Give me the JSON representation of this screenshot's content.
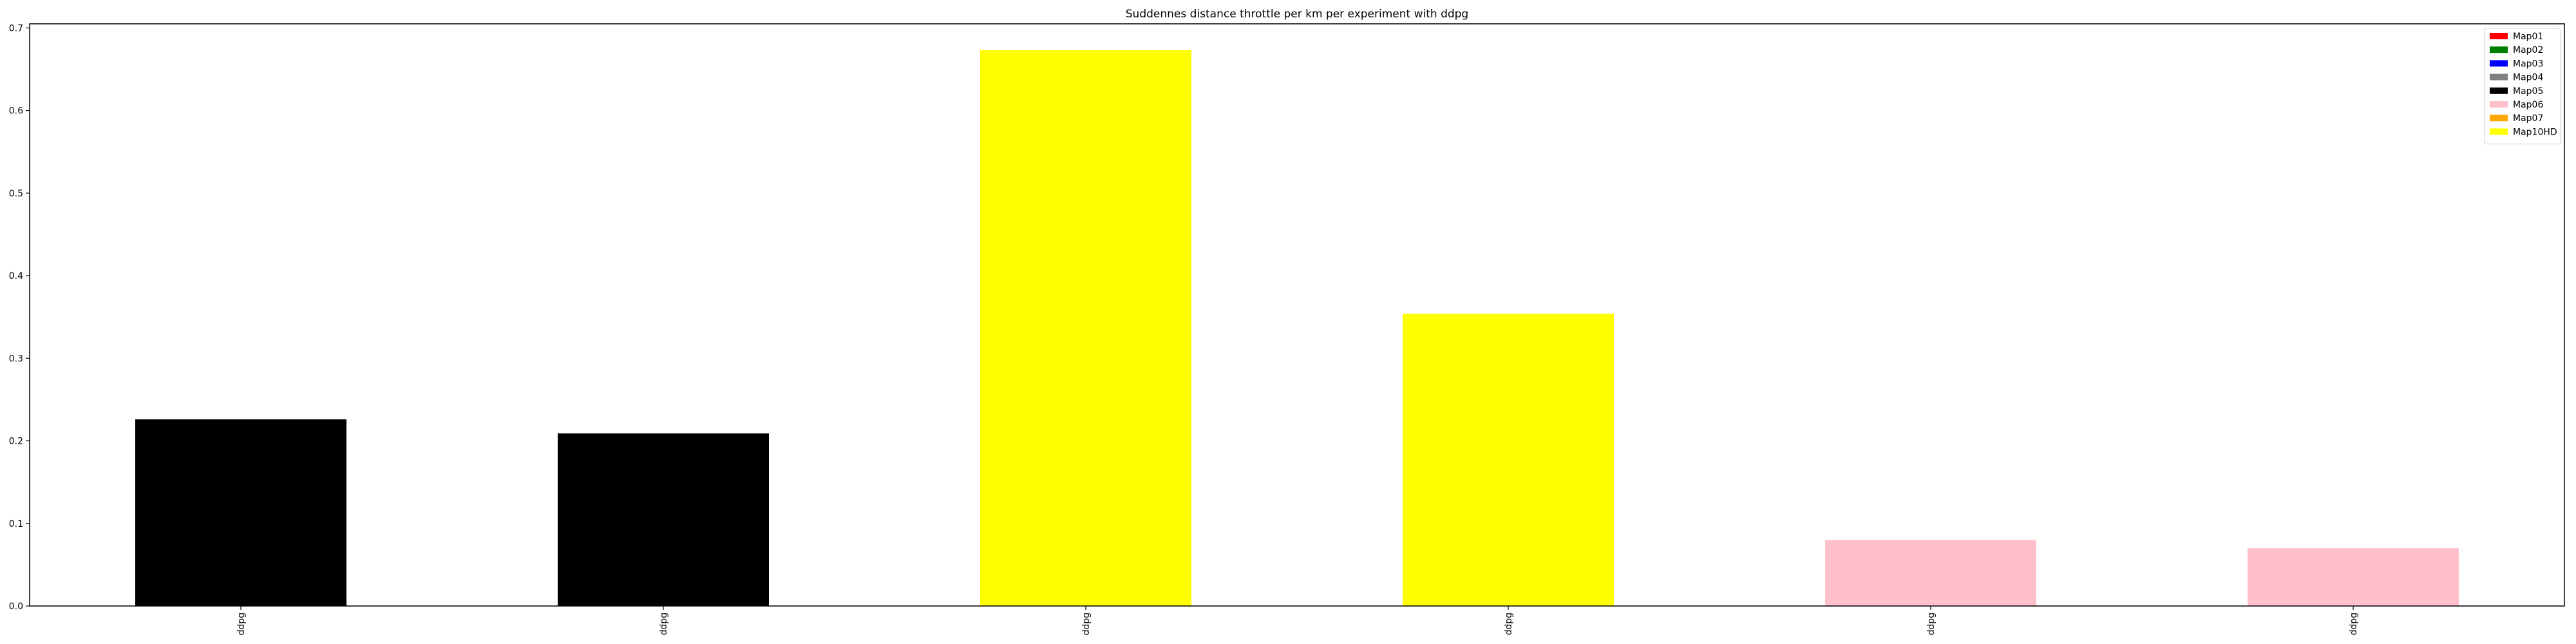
{
  "chart_data": {
    "type": "bar",
    "title": "Suddennes distance throttle per km per experiment with ddpg",
    "xlabel": "",
    "ylabel": "",
    "categories": [
      "ddpg",
      "ddpg",
      "ddpg",
      "ddpg",
      "ddpg",
      "ddpg"
    ],
    "values": [
      0.226,
      0.209,
      0.673,
      0.354,
      0.08,
      0.07
    ],
    "bar_colors": [
      "#000000",
      "#000000",
      "#ffff00",
      "#ffff00",
      "#ffc0cb",
      "#ffc0cb"
    ],
    "ylim": [
      0,
      0.705
    ],
    "yticks": [
      0.0,
      0.1,
      0.2,
      0.3,
      0.4,
      0.5,
      0.6,
      0.7
    ],
    "ytick_labels": [
      "0.0",
      "0.1",
      "0.2",
      "0.3",
      "0.4",
      "0.5",
      "0.6",
      "0.7"
    ],
    "grid": false,
    "legend": {
      "placement": "top-right",
      "entries": [
        {
          "label": "Map01",
          "color": "#ff0000"
        },
        {
          "label": "Map02",
          "color": "#008000"
        },
        {
          "label": "Map03",
          "color": "#0000ff"
        },
        {
          "label": "Map04",
          "color": "#808080"
        },
        {
          "label": "Map05",
          "color": "#000000"
        },
        {
          "label": "Map06",
          "color": "#ffc0cb"
        },
        {
          "label": "Map07",
          "color": "#ffa500"
        },
        {
          "label": "Map10HD",
          "color": "#ffff00"
        }
      ]
    }
  }
}
